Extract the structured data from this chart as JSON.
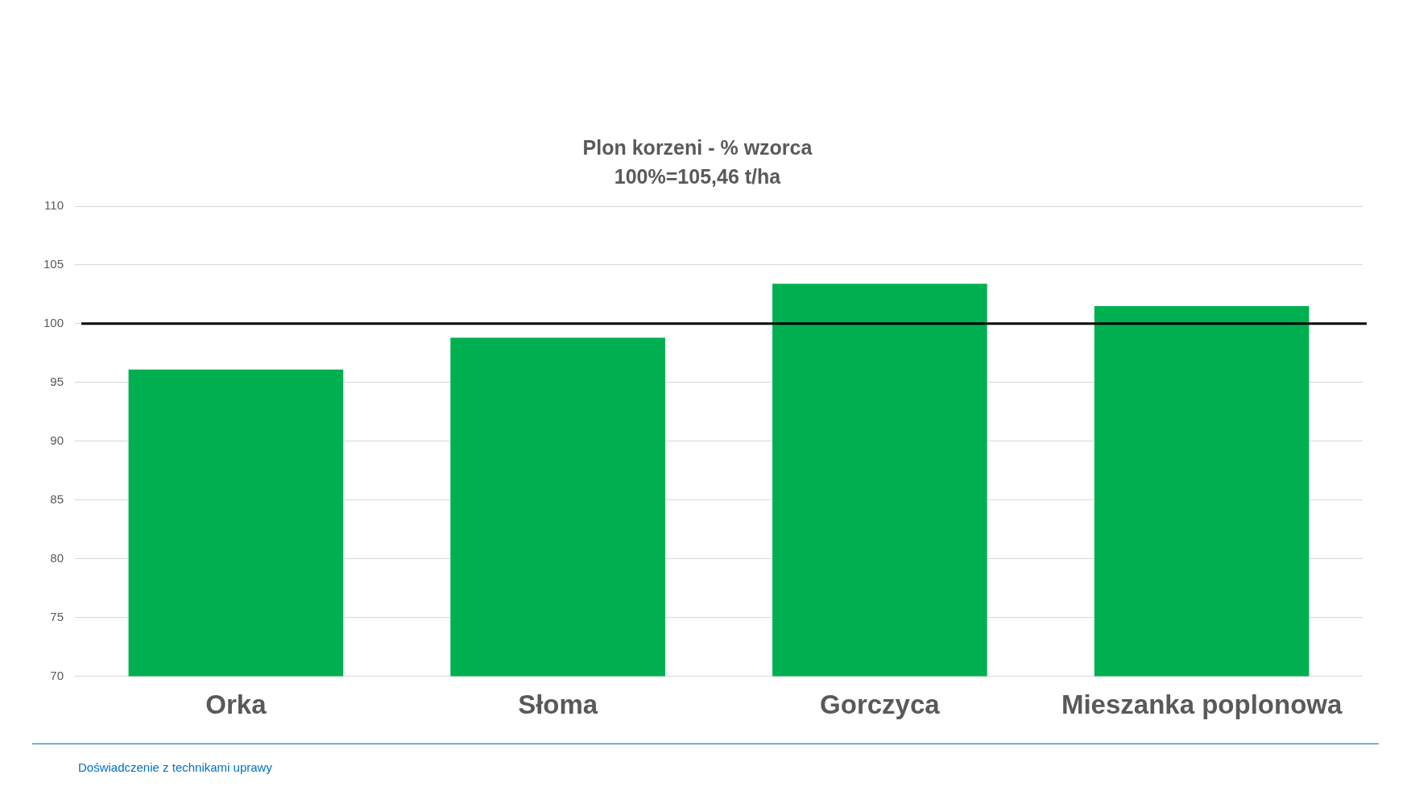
{
  "chart_data": {
    "type": "bar",
    "title": "Plon korzeni - % wzorca",
    "subtitle": "100%=105,46 t/ha",
    "categories": [
      "Orka",
      "Słoma",
      "Gorczyca",
      "Mieszanka poplonowa"
    ],
    "values": [
      96.1,
      98.8,
      103.4,
      101.5
    ],
    "color": "#00b050",
    "ylim": [
      70,
      110
    ],
    "yticks": [
      70,
      75,
      80,
      85,
      90,
      95,
      100,
      105,
      110
    ],
    "grid": "y",
    "legend": false,
    "ref_lines": [
      {
        "axis": "y",
        "value": 100,
        "color": "#000000"
      }
    ],
    "annotations": [
      "Doświadczenie z technikami uprawy"
    ]
  }
}
